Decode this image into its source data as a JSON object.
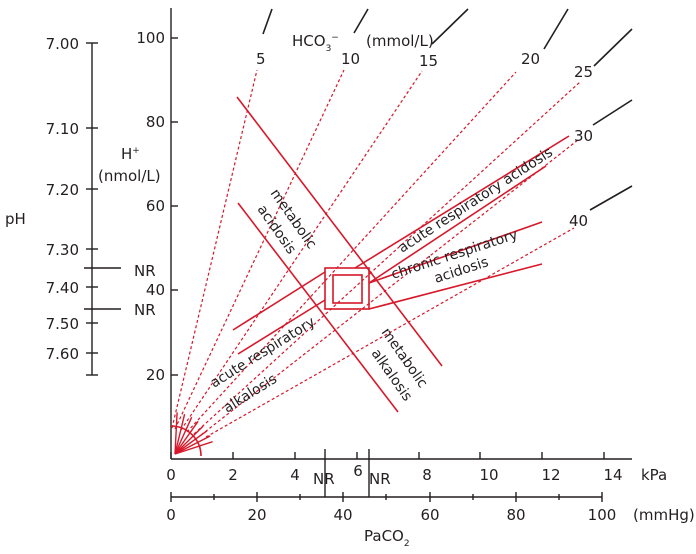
{
  "ph_axis": {
    "title": "pH",
    "ticks": [
      "7.00",
      "7.10",
      "7.20",
      "7.30",
      "7.40",
      "7.50",
      "7.60"
    ],
    "nr_labels": [
      "NR",
      "NR"
    ]
  },
  "h_axis": {
    "title_line1": "H",
    "title_sup": "+",
    "title_line2": "(nmol/L)",
    "ticks": [
      "100",
      "80",
      "60",
      "40",
      "20"
    ]
  },
  "hco3": {
    "label": "HCO",
    "sub": "3",
    "sup": "−",
    "unit": "(mmol/L)",
    "values": [
      "5",
      "10",
      "15",
      "20",
      "25",
      "30",
      "40"
    ]
  },
  "kpa_axis": {
    "unit": "kPa",
    "ticks": [
      "0",
      "2",
      "4",
      "6",
      "8",
      "10",
      "12",
      "14"
    ],
    "nr_labels": [
      "NR",
      "NR"
    ]
  },
  "mmhg_axis": {
    "unit": "(mmHg)",
    "ticks": [
      "0",
      "20",
      "40",
      "60",
      "80",
      "100"
    ]
  },
  "x_title": {
    "text": "PaCO",
    "sub": "2"
  },
  "regions": {
    "metabolic_acidosis_1": "metabolic",
    "metabolic_acidosis_2": "acidosis",
    "acute_resp_acidosis": "acute respiratory acidosis",
    "chronic_resp_acidosis_1": "chronic respiratory",
    "chronic_resp_acidosis_2": "acidosis",
    "acute_resp_alkalosis_1": "acute respiratory",
    "acute_resp_alkalosis_2": "alkalosis",
    "metabolic_alkalosis_1": "metabolic",
    "metabolic_alkalosis_2": "alkalosis"
  },
  "colors": {
    "accent": "#d7182a",
    "ink": "#231f20"
  }
}
